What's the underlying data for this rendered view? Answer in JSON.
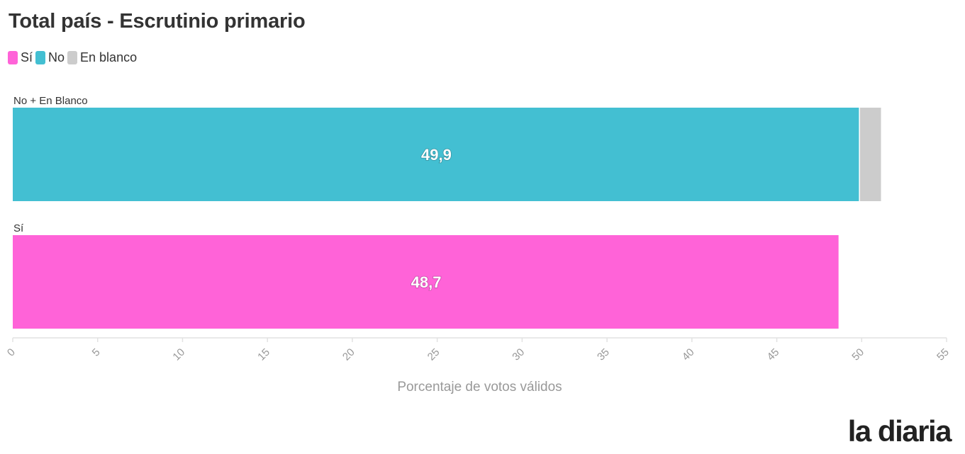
{
  "title": "Total país - Escrutinio primario",
  "legend": [
    {
      "label": "Sí",
      "color": "#ff63d8"
    },
    {
      "label": "No",
      "color": "#43bfd2"
    },
    {
      "label": "En blanco",
      "color": "#cccccc"
    }
  ],
  "brand": "la diaria",
  "chart_data": {
    "type": "bar",
    "orientation": "horizontal",
    "stacked": true,
    "categories": [
      "No + En Blanco",
      "Sí"
    ],
    "series": [
      {
        "name": "Sí",
        "color": "#ff63d8",
        "values": [
          0,
          48.7
        ],
        "labels": [
          "",
          "48,7"
        ]
      },
      {
        "name": "No",
        "color": "#43bfd2",
        "values": [
          49.9,
          0
        ],
        "labels": [
          "49,9",
          ""
        ]
      },
      {
        "name": "En blanco",
        "color": "#cccccc",
        "values": [
          1.3,
          0
        ],
        "labels": [
          "",
          ""
        ]
      }
    ],
    "xlabel": "Porcentaje de votos válidos",
    "xlim": [
      0,
      55
    ],
    "xticks": [
      0,
      5,
      10,
      15,
      20,
      25,
      30,
      35,
      40,
      45,
      50,
      55
    ],
    "grid": false,
    "legend_position": "top-left"
  }
}
